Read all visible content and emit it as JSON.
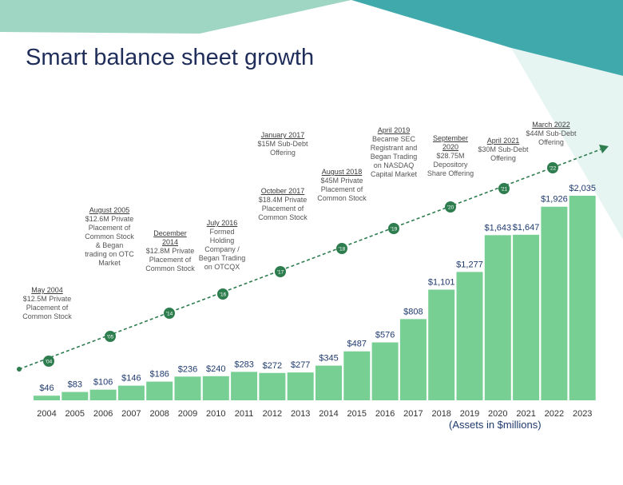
{
  "title": "Smart balance sheet growth",
  "units_note": "(Assets in $millions)",
  "colors": {
    "bar": "#78cf94",
    "value_label": "#1f3a6e",
    "trend": "#2e7d4f",
    "teal": "#40a9ac",
    "mint": "#9ed6c3",
    "pale": "#e6f4f2"
  },
  "chart_data": {
    "type": "bar",
    "categories": [
      "2004",
      "2005",
      "2006",
      "2007",
      "2008",
      "2009",
      "2010",
      "2011",
      "2012",
      "2013",
      "2014",
      "2015",
      "2016",
      "2017",
      "2018",
      "2019",
      "2020",
      "2021",
      "2022",
      "2023"
    ],
    "values": [
      46,
      83,
      106,
      146,
      186,
      236,
      240,
      283,
      272,
      277,
      345,
      487,
      576,
      808,
      1101,
      1277,
      1643,
      1647,
      1926,
      2035
    ],
    "value_labels": [
      "$46",
      "$83",
      "$106",
      "$146",
      "$186",
      "$236",
      "$240",
      "$283",
      "$272",
      "$277",
      "$345",
      "$487",
      "$576",
      "$808",
      "$1,101",
      "$1,277",
      "$1,643",
      "$1,647",
      "$1,926",
      "$2,035"
    ],
    "ylim": [
      0,
      2035
    ],
    "grid": false,
    "trend_markers": [
      "'04",
      "'05",
      "'14",
      "'16",
      "'17",
      "'18",
      "'19",
      "'20",
      "'21",
      "'22"
    ],
    "annotations": [
      {
        "date": "May 2004",
        "text": "$12.5M Private Placement of Common Stock"
      },
      {
        "date": "August 2005",
        "text": "$12.6M Private Placement of Common Stock & Began trading on OTC Market"
      },
      {
        "date": "December 2014",
        "text": "$12.8M Private Placement of Common Stock"
      },
      {
        "date": "July 2016",
        "text": "Formed Holding Company / Began Trading on OTCQX"
      },
      {
        "date": "January 2017",
        "text": "$15M Sub-Debt Offering"
      },
      {
        "date": "October 2017",
        "text": "$18.4M Private Placement of Common Stock"
      },
      {
        "date": "August 2018",
        "text": "$45M Private Placement of Common Stock"
      },
      {
        "date": "April 2019",
        "text": "Became SEC Registrant and Began Trading on NASDAQ Capital Market"
      },
      {
        "date": "September 2020",
        "text": "$28.75M Depository Share Offering"
      },
      {
        "date": "April 2021",
        "text": "$30M Sub-Debt Offering"
      },
      {
        "date": "March 2022",
        "text": "$44M Sub-Debt Offering"
      }
    ]
  }
}
